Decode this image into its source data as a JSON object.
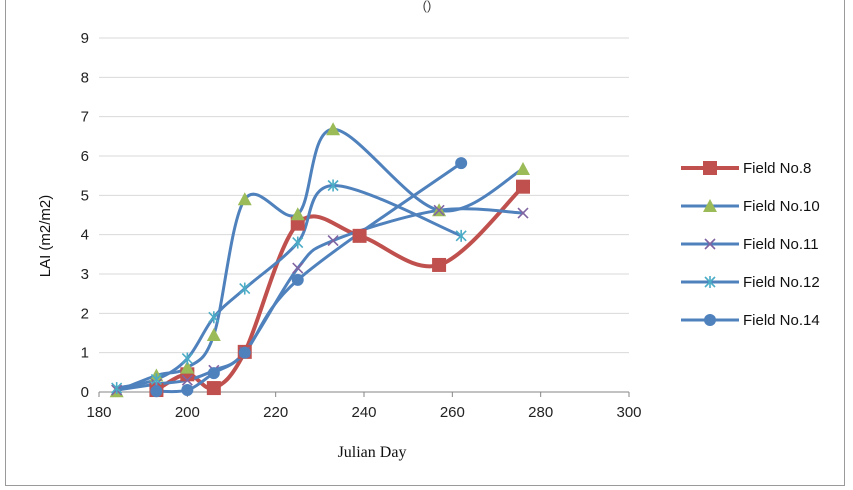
{
  "chart_data": {
    "type": "line",
    "title": "",
    "title_fragment": "()",
    "xlabel": "Julian Day",
    "ylabel": "LAI (m2/m2)",
    "xlim": [
      180,
      300
    ],
    "ylim": [
      0,
      9
    ],
    "xticks": [
      180,
      200,
      220,
      240,
      260,
      280,
      300
    ],
    "yticks": [
      0,
      1,
      2,
      3,
      4,
      5,
      6,
      7,
      8,
      9
    ],
    "grid": "horizontal",
    "legend_position": "right",
    "series": [
      {
        "name": "Field No.8",
        "color": "#c0504d",
        "marker": "square",
        "points": [
          [
            193,
            0.05
          ],
          [
            200,
            0.45
          ],
          [
            206,
            0.1
          ],
          [
            213,
            1.02
          ],
          [
            225,
            4.28
          ],
          [
            239,
            3.97
          ],
          [
            257,
            3.23
          ],
          [
            276,
            5.22
          ]
        ]
      },
      {
        "name": "Field No.10",
        "color": "#4f81bd",
        "marker": "triangle",
        "marker_color": "#9bbb59",
        "points": [
          [
            184,
            0.02
          ],
          [
            193,
            0.42
          ],
          [
            200,
            0.62
          ],
          [
            206,
            1.45
          ],
          [
            213,
            4.9
          ],
          [
            225,
            4.52
          ],
          [
            233,
            6.68
          ],
          [
            257,
            4.62
          ],
          [
            276,
            5.67
          ]
        ]
      },
      {
        "name": "Field No.11",
        "color": "#4f81bd",
        "marker": "x",
        "marker_color": "#8064a2",
        "points": [
          [
            184,
            0.05
          ],
          [
            193,
            0.2
          ],
          [
            200,
            0.3
          ],
          [
            206,
            0.55
          ],
          [
            213,
            1.02
          ],
          [
            225,
            3.15
          ],
          [
            233,
            3.85
          ],
          [
            257,
            4.62
          ],
          [
            276,
            4.55
          ]
        ]
      },
      {
        "name": "Field No.12",
        "color": "#4f81bd",
        "marker": "star",
        "marker_color": "#4bacc6",
        "points": [
          [
            184,
            0.1
          ],
          [
            193,
            0.32
          ],
          [
            200,
            0.85
          ],
          [
            206,
            1.9
          ],
          [
            213,
            2.63
          ],
          [
            225,
            3.8
          ],
          [
            233,
            5.25
          ],
          [
            262,
            3.97
          ]
        ]
      },
      {
        "name": "Field No.14",
        "color": "#4f81bd",
        "marker": "circle",
        "marker_color": "#4f81bd",
        "points": [
          [
            193,
            0.02
          ],
          [
            200,
            0.05
          ],
          [
            206,
            0.48
          ],
          [
            213,
            1.0
          ],
          [
            225,
            2.85
          ],
          [
            262,
            5.82
          ]
        ]
      }
    ]
  }
}
